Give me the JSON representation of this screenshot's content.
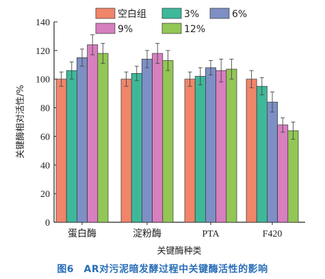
{
  "chart_data": {
    "type": "bar",
    "categories": [
      "蛋白酶",
      "淀粉酶",
      "PTA",
      "F420"
    ],
    "series": [
      {
        "name": "空白组",
        "color": "#f0856a",
        "values": [
          100,
          100,
          100,
          100
        ],
        "errors": [
          5,
          5,
          5,
          6
        ]
      },
      {
        "name": "3%",
        "color": "#3fb89a",
        "values": [
          106,
          104,
          102,
          95
        ],
        "errors": [
          6,
          5,
          6,
          6
        ]
      },
      {
        "name": "6%",
        "color": "#7d8fc4",
        "values": [
          115,
          114,
          108,
          84
        ],
        "errors": [
          6,
          6,
          5,
          7
        ]
      },
      {
        "name": "9%",
        "color": "#d77fbf",
        "values": [
          124,
          118,
          106,
          68
        ],
        "errors": [
          7,
          7,
          8,
          5
        ]
      },
      {
        "name": "12%",
        "color": "#92c655",
        "values": [
          118,
          113,
          107,
          64
        ],
        "errors": [
          7,
          7,
          7,
          6
        ]
      }
    ],
    "xlabel": "关键酶种类",
    "ylabel": "关键酶相对活性/%",
    "ylim": [
      0,
      140
    ],
    "yticks": [
      0,
      20,
      40,
      60,
      80,
      100,
      120,
      140
    ],
    "grid": false,
    "legend": "top"
  },
  "caption": "图6　AR对污泥暗发酵过程中关键酶活性的影响"
}
